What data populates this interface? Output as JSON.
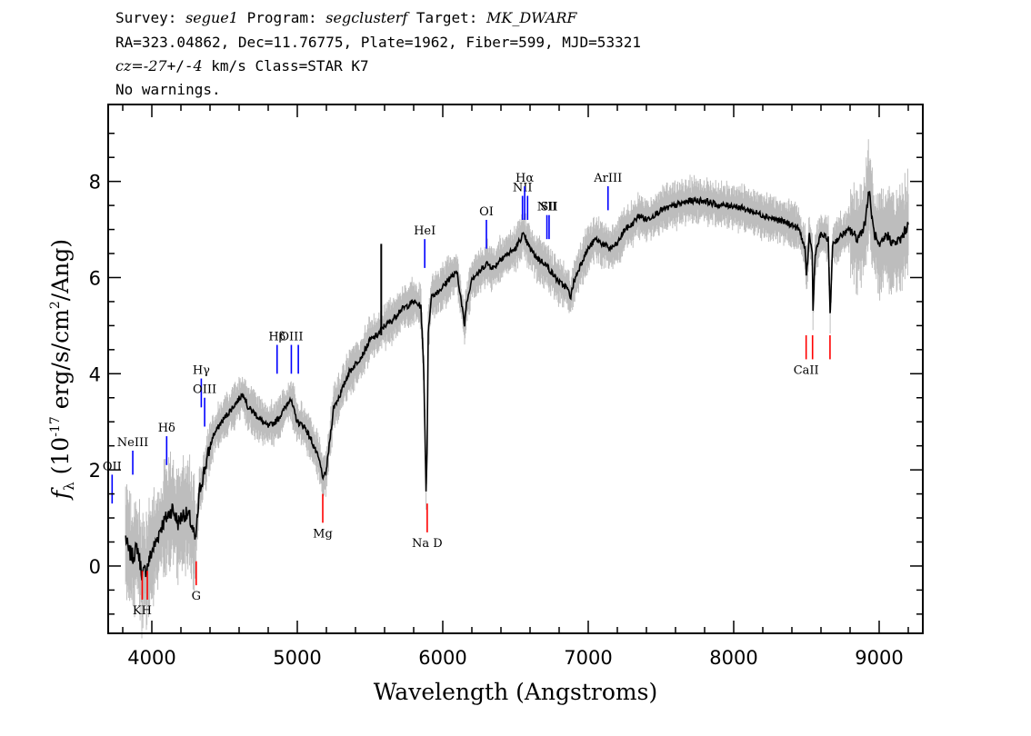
{
  "header": {
    "line1": {
      "survey_label": "Survey:",
      "survey": "segue1",
      "program_label": "Program:",
      "program": "segclusterf",
      "target_label": "Target:",
      "target": "MK_DWARF"
    },
    "line2": "RA=323.04862, Dec=11.76775, Plate=1962, Fiber=599, MJD=53321",
    "line3": {
      "cz_label": "cz=",
      "cz_value": "-27",
      "pm": "+/-",
      "cz_err": "4",
      "rest": " km/s Class=STAR K7"
    },
    "line4": "No warnings."
  },
  "chart_data": {
    "type": "line",
    "xlabel": "Wavelength (Angstroms)",
    "ylabel_parts": [
      "f",
      "λ",
      " (10",
      "-17",
      " erg/s/cm",
      "2",
      "/Ang)"
    ],
    "xlim": [
      3700,
      9300
    ],
    "ylim": [
      -1.4,
      9.6
    ],
    "x_ticks": [
      4000,
      5000,
      6000,
      7000,
      8000,
      9000
    ],
    "y_ticks": [
      0,
      2,
      4,
      6,
      8
    ],
    "colors": {
      "flux": "#000000",
      "error": "#bdbdbd",
      "emission": "#0000ff",
      "absorption": "#ff0000"
    },
    "series": [
      {
        "points": [
          [
            3820,
            0.6
          ],
          [
            3840,
            0.3
          ],
          [
            3870,
            0.2
          ],
          [
            3900,
            0.4
          ],
          [
            3935,
            -0.2
          ],
          [
            3970,
            0.0
          ],
          [
            4000,
            0.3
          ],
          [
            4030,
            0.5
          ],
          [
            4060,
            0.8
          ],
          [
            4100,
            1.0
          ],
          [
            4140,
            1.2
          ],
          [
            4180,
            0.9
          ],
          [
            4220,
            1.1
          ],
          [
            4260,
            1.0
          ],
          [
            4300,
            0.5
          ],
          [
            4330,
            1.6
          ],
          [
            4370,
            2.1
          ],
          [
            4420,
            2.7
          ],
          [
            4480,
            3.0
          ],
          [
            4530,
            3.2
          ],
          [
            4580,
            3.4
          ],
          [
            4630,
            3.6
          ],
          [
            4660,
            3.3
          ],
          [
            4700,
            3.2
          ],
          [
            4760,
            3.0
          ],
          [
            4800,
            2.9
          ],
          [
            4850,
            3.0
          ],
          [
            4900,
            3.2
          ],
          [
            4950,
            3.5
          ],
          [
            5000,
            3.0
          ],
          [
            5050,
            2.9
          ],
          [
            5100,
            2.6
          ],
          [
            5150,
            2.2
          ],
          [
            5180,
            1.8
          ],
          [
            5200,
            2.0
          ],
          [
            5250,
            3.3
          ],
          [
            5300,
            3.6
          ],
          [
            5350,
            4.0
          ],
          [
            5400,
            4.2
          ],
          [
            5450,
            4.4
          ],
          [
            5500,
            4.7
          ],
          [
            5550,
            4.8
          ],
          [
            5600,
            5.0
          ],
          [
            5650,
            5.1
          ],
          [
            5700,
            5.3
          ],
          [
            5750,
            5.4
          ],
          [
            5800,
            5.5
          ],
          [
            5850,
            5.4
          ],
          [
            5870,
            4.0
          ],
          [
            5885,
            1.6
          ],
          [
            5892,
            2.4
          ],
          [
            5900,
            4.8
          ],
          [
            5920,
            5.6
          ],
          [
            5960,
            5.7
          ],
          [
            6000,
            5.8
          ],
          [
            6050,
            6.0
          ],
          [
            6100,
            6.1
          ],
          [
            6150,
            5.0
          ],
          [
            6160,
            5.4
          ],
          [
            6200,
            6.0
          ],
          [
            6250,
            6.1
          ],
          [
            6300,
            6.3
          ],
          [
            6350,
            6.2
          ],
          [
            6400,
            6.4
          ],
          [
            6450,
            6.5
          ],
          [
            6500,
            6.6
          ],
          [
            6550,
            6.9
          ],
          [
            6600,
            6.6
          ],
          [
            6650,
            6.4
          ],
          [
            6700,
            6.3
          ],
          [
            6750,
            6.1
          ],
          [
            6800,
            5.9
          ],
          [
            6850,
            5.8
          ],
          [
            6880,
            5.6
          ],
          [
            6900,
            5.9
          ],
          [
            6950,
            6.3
          ],
          [
            7000,
            6.6
          ],
          [
            7050,
            6.8
          ],
          [
            7100,
            6.7
          ],
          [
            7150,
            6.6
          ],
          [
            7200,
            6.7
          ],
          [
            7250,
            7.0
          ],
          [
            7300,
            7.1
          ],
          [
            7350,
            7.3
          ],
          [
            7400,
            7.2
          ],
          [
            7500,
            7.4
          ],
          [
            7600,
            7.5
          ],
          [
            7700,
            7.6
          ],
          [
            7800,
            7.6
          ],
          [
            7900,
            7.5
          ],
          [
            8000,
            7.5
          ],
          [
            8100,
            7.4
          ],
          [
            8200,
            7.3
          ],
          [
            8300,
            7.2
          ],
          [
            8400,
            7.1
          ],
          [
            8450,
            7.0
          ],
          [
            8490,
            6.6
          ],
          [
            8500,
            6.0
          ],
          [
            8520,
            6.9
          ],
          [
            8540,
            6.5
          ],
          [
            8545,
            5.3
          ],
          [
            8560,
            6.5
          ],
          [
            8600,
            6.9
          ],
          [
            8650,
            6.8
          ],
          [
            8663,
            5.2
          ],
          [
            8680,
            6.7
          ],
          [
            8750,
            6.9
          ],
          [
            8800,
            7.0
          ],
          [
            8850,
            6.8
          ],
          [
            8900,
            7.1
          ],
          [
            8930,
            7.8
          ],
          [
            8960,
            7.0
          ],
          [
            9000,
            6.6
          ],
          [
            9050,
            6.9
          ],
          [
            9100,
            6.7
          ],
          [
            9150,
            6.8
          ],
          [
            9200,
            7.1
          ]
        ]
      }
    ],
    "emission_lines": [
      {
        "label": "OII",
        "x": 3727,
        "y0": 1.3,
        "y1": 1.9
      },
      {
        "label": "NeIII",
        "x": 3869,
        "y0": 1.9,
        "y1": 2.4
      },
      {
        "label": "Hδ",
        "x": 4102,
        "y0": 2.1,
        "y1": 2.7
      },
      {
        "label": "Hγ",
        "x": 4340,
        "y0": 3.3,
        "y1": 3.9
      },
      {
        "label": "OIII",
        "x": 4363,
        "y0": 2.9,
        "y1": 3.5
      },
      {
        "label": "Hβ",
        "x": 4861,
        "y0": 4.0,
        "y1": 4.6
      },
      {
        "label": "OIII",
        "x": 4959,
        "y0": 4.0,
        "y1": 4.6
      },
      {
        "label": "",
        "x": 5007,
        "y0": 4.0,
        "y1": 4.6
      },
      {
        "label": "HeI",
        "x": 5876,
        "y0": 6.2,
        "y1": 6.8
      },
      {
        "label": "OI",
        "x": 6300,
        "y0": 6.6,
        "y1": 7.2
      },
      {
        "label": "NII",
        "x": 6548,
        "y0": 7.2,
        "y1": 7.7
      },
      {
        "label": "Hα",
        "x": 6563,
        "y0": 7.2,
        "y1": 7.9
      },
      {
        "label": "",
        "x": 6583,
        "y0": 7.2,
        "y1": 7.7
      },
      {
        "label": "NII",
        "x": 6716,
        "y0": 6.8,
        "y1": 7.3
      },
      {
        "label": "SII",
        "x": 6731,
        "y0": 6.8,
        "y1": 7.3
      },
      {
        "label": "ArIII",
        "x": 7136,
        "y0": 7.4,
        "y1": 7.9
      }
    ],
    "absorption_lines": [
      {
        "label": "KH",
        "x": 3934,
        "y0": -0.7,
        "y1": -0.1
      },
      {
        "label": "",
        "x": 3969,
        "y0": -0.7,
        "y1": -0.1
      },
      {
        "label": "G",
        "x": 4305,
        "y0": -0.4,
        "y1": 0.1
      },
      {
        "label": "Mg",
        "x": 5175,
        "y0": 0.9,
        "y1": 1.5
      },
      {
        "label": "Na D",
        "x": 5893,
        "y0": 0.7,
        "y1": 1.3
      },
      {
        "label": "CaII",
        "x": 8498,
        "y0": 4.3,
        "y1": 4.8
      },
      {
        "label": "",
        "x": 8542,
        "y0": 4.3,
        "y1": 4.8
      },
      {
        "label": "",
        "x": 8662,
        "y0": 4.3,
        "y1": 4.8
      }
    ]
  }
}
